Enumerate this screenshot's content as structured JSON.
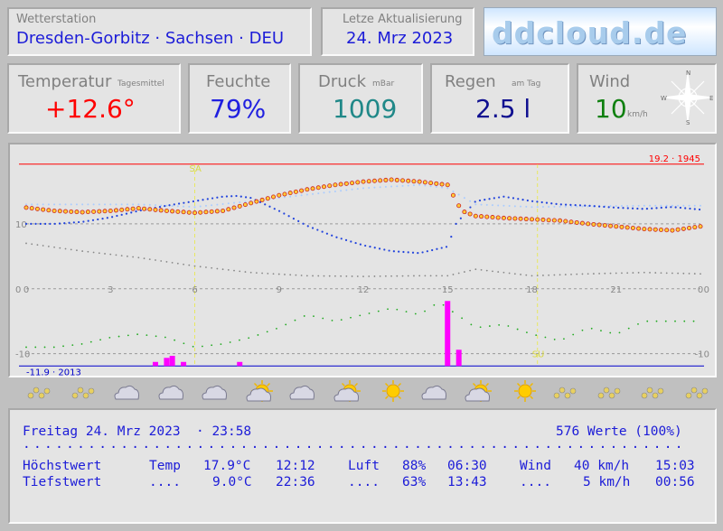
{
  "station": {
    "label": "Wetterstation",
    "name": "Dresden-Gorbitz · Sachsen · DEU"
  },
  "update": {
    "label": "Letze Aktualisierung",
    "date": "24. Mrz 2023"
  },
  "logo": {
    "text": "ddcloud.de"
  },
  "tiles": {
    "temperature": {
      "label": "Temperatur",
      "unit": "Tagesmittel",
      "value": "+12.6°",
      "color": "#ff0000"
    },
    "humidity": {
      "label": "Feuchte",
      "value": "79%",
      "color": "#2020e0"
    },
    "pressure": {
      "label": "Druck",
      "unit": "mBar",
      "value": "1009",
      "color": "#208888"
    },
    "rain": {
      "label": "Regen",
      "unit": "am Tag",
      "value": "2.5 l",
      "color": "#101090"
    },
    "wind": {
      "label": "Wind",
      "value": "10",
      "unit": "km/h",
      "color": "#108010",
      "compass": {
        "n": "N",
        "e": "E",
        "s": "S",
        "w": "W"
      }
    }
  },
  "chart_data": {
    "type": "line",
    "x_ticks": [
      "0",
      "3",
      "6",
      "9",
      "12",
      "15",
      "18",
      "21",
      "0"
    ],
    "y_left_ticks": [
      "10",
      "0",
      "-10"
    ],
    "y_right_ticks": [
      "0",
      "-10"
    ],
    "max_label": "19.2 · 1945",
    "min_label": "-11.9 · 2013",
    "sunrise_label": "SA",
    "sunset_label": "SU",
    "colors": {
      "temp": "#cc2222",
      "temp_fill": "#ffcc33",
      "prev_temp": "#aaccff",
      "humidity": "#2244dd",
      "pressure": "#888888",
      "wind": "#22aa22",
      "rain": "#ff00ff",
      "max": "#ff0000",
      "min": "#0000cc"
    },
    "series": [
      {
        "key": "temp",
        "x": [
          0,
          1,
          2,
          3,
          4,
          5,
          6,
          7,
          8,
          9,
          10,
          11,
          12,
          13,
          14,
          15,
          15.5,
          16,
          17,
          18,
          19,
          20,
          21,
          22,
          23,
          24
        ],
        "values": [
          12.5,
          12.0,
          11.8,
          12.0,
          12.4,
          12.0,
          11.7,
          12.0,
          13.2,
          14.4,
          15.3,
          16.0,
          16.5,
          16.8,
          16.5,
          16.0,
          12.0,
          11.2,
          10.9,
          10.7,
          10.5,
          10.0,
          9.6,
          9.2,
          9.0,
          9.6
        ]
      },
      {
        "key": "prev_temp",
        "x": [
          0,
          2,
          4,
          6,
          8,
          10,
          12,
          14,
          15,
          16,
          18,
          20,
          22,
          24
        ],
        "values": [
          13.0,
          13.0,
          13.0,
          12.6,
          13.5,
          14.5,
          15.5,
          16.0,
          15.5,
          13.0,
          12.6,
          12.7,
          12.8,
          12.8
        ]
      },
      {
        "key": "humidity",
        "x": [
          0,
          1,
          2,
          3,
          4,
          5,
          6,
          7,
          7.5,
          8,
          9,
          10,
          11,
          12,
          13,
          14,
          15,
          15.3,
          16,
          17,
          18,
          19,
          20,
          21,
          22,
          23,
          24
        ],
        "values": [
          10.0,
          10.0,
          10.3,
          11.0,
          12.0,
          12.8,
          13.5,
          14.2,
          14.3,
          14.0,
          12.0,
          9.7,
          8.0,
          6.7,
          5.8,
          5.5,
          6.5,
          10.0,
          13.5,
          14.2,
          13.5,
          13.0,
          12.8,
          12.5,
          12.3,
          12.6,
          12.2
        ]
      },
      {
        "key": "pressure",
        "x": [
          0,
          2,
          4,
          6,
          8,
          10,
          12,
          14,
          15,
          16,
          18,
          20,
          22,
          24
        ],
        "values": [
          7.0,
          5.8,
          4.8,
          3.5,
          2.5,
          2.0,
          1.9,
          2.0,
          2.0,
          3.0,
          2.0,
          2.3,
          2.5,
          2.3
        ]
      },
      {
        "key": "wind",
        "x": [
          0,
          1,
          2,
          3,
          4,
          5,
          6,
          7,
          8,
          9,
          10,
          11,
          12,
          13,
          14,
          14.7,
          15,
          16,
          17,
          18,
          19,
          20,
          21,
          22,
          23,
          24
        ],
        "values": [
          -9,
          -9,
          -8.5,
          -7.5,
          -7,
          -7.5,
          -9,
          -8.5,
          -7.5,
          -6,
          -4,
          -5,
          -4,
          -3,
          -4,
          -2,
          -3,
          -6,
          -5.5,
          -7,
          -8,
          -6,
          -7,
          -5,
          -5,
          -5
        ]
      }
    ],
    "rain_bars": [
      {
        "x": 4.6,
        "v": 1
      },
      {
        "x": 5.0,
        "v": 2
      },
      {
        "x": 5.2,
        "v": 2.5
      },
      {
        "x": 5.6,
        "v": 1
      },
      {
        "x": 7.6,
        "v": 1
      },
      {
        "x": 15.0,
        "v": 16
      },
      {
        "x": 15.4,
        "v": 4
      }
    ],
    "ylim": [
      -12,
      20
    ]
  },
  "forecast_icons": [
    "sun-cloud-icon",
    "sun-cloud-icon",
    "cloud-icon",
    "cloud-icon",
    "cloud-icon",
    "sun-cloud-icon",
    "cloud-icon",
    "sun-cloud-icon",
    "sun-icon",
    "cloud-icon",
    "sun-cloud-icon",
    "sun-icon",
    "sun-cloud-icon",
    "sun-cloud-icon",
    "sun-cloud-icon",
    "sun-cloud-icon"
  ],
  "summary": {
    "date": "Freitag 24. Mrz 2023  · 23:58",
    "count": "576 Werte (100%)",
    "dots": ".............................................................",
    "max_row": {
      "label": "Höchstwert",
      "temp_lbl": "Temp",
      "temp": "17.9°C",
      "temp_time": "12:12",
      "hum_lbl": "Luft",
      "hum": "88%",
      "hum_time": "06:30",
      "wind_lbl": "Wind",
      "wind": "40 km/h",
      "wind_time": "15:03"
    },
    "min_row": {
      "label": "Tiefstwert",
      "temp_lbl": "....",
      "temp": "9.0°C",
      "temp_time": "22:36",
      "hum_lbl": "....",
      "hum": "63%",
      "hum_time": "13:43",
      "wind_lbl": "....",
      "wind": "5 km/h",
      "wind_time": "00:56"
    }
  }
}
